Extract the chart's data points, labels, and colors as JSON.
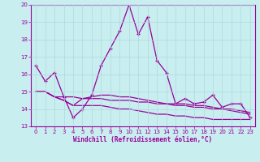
{
  "xlabel": "Windchill (Refroidissement éolien,°C)",
  "bg_color": "#c8eef0",
  "grid_color": "#b0d8dc",
  "line_color": "#990099",
  "xlim": [
    -0.5,
    23.5
  ],
  "ylim": [
    13,
    20
  ],
  "xticks": [
    0,
    1,
    2,
    3,
    4,
    5,
    6,
    7,
    8,
    9,
    10,
    11,
    12,
    13,
    14,
    15,
    16,
    17,
    18,
    19,
    20,
    21,
    22,
    23
  ],
  "yticks": [
    13,
    14,
    15,
    16,
    17,
    18,
    19,
    20
  ],
  "line1_x": [
    0,
    1,
    2,
    3,
    4,
    5,
    6,
    7,
    8,
    9,
    10,
    11,
    12,
    13,
    14,
    15,
    16,
    17,
    18,
    19,
    20,
    21,
    22,
    23
  ],
  "line1_y": [
    16.5,
    15.6,
    16.1,
    14.7,
    13.5,
    14.0,
    14.8,
    16.5,
    17.5,
    18.5,
    20.0,
    18.3,
    19.3,
    16.8,
    16.1,
    14.3,
    14.6,
    14.3,
    14.4,
    14.8,
    14.1,
    14.3,
    14.3,
    13.5
  ],
  "line2_x": [
    0,
    1,
    2,
    3,
    4,
    5,
    6,
    7,
    8,
    9,
    10,
    11,
    12,
    13,
    14,
    15,
    16,
    17,
    18,
    19,
    20,
    21,
    22,
    23
  ],
  "line2_y": [
    15.0,
    15.0,
    14.7,
    14.7,
    14.7,
    14.6,
    14.6,
    14.6,
    14.5,
    14.5,
    14.5,
    14.4,
    14.4,
    14.3,
    14.3,
    14.2,
    14.2,
    14.1,
    14.1,
    14.0,
    14.0,
    13.9,
    13.8,
    13.7
  ],
  "line3_x": [
    0,
    1,
    2,
    3,
    4,
    5,
    6,
    7,
    8,
    9,
    10,
    11,
    12,
    13,
    14,
    15,
    16,
    17,
    18,
    19,
    20,
    21,
    22,
    23
  ],
  "line3_y": [
    15.0,
    15.0,
    14.7,
    14.5,
    14.2,
    14.6,
    14.7,
    14.8,
    14.8,
    14.7,
    14.7,
    14.6,
    14.5,
    14.4,
    14.3,
    14.3,
    14.3,
    14.2,
    14.2,
    14.1,
    14.0,
    14.0,
    13.9,
    13.8
  ],
  "line4_x": [
    0,
    1,
    2,
    3,
    4,
    5,
    6,
    7,
    8,
    9,
    10,
    11,
    12,
    13,
    14,
    15,
    16,
    17,
    18,
    19,
    20,
    21,
    22,
    23
  ],
  "line4_y": [
    15.0,
    15.0,
    14.7,
    14.5,
    14.2,
    14.2,
    14.2,
    14.2,
    14.1,
    14.0,
    14.0,
    13.9,
    13.8,
    13.7,
    13.7,
    13.6,
    13.6,
    13.5,
    13.5,
    13.4,
    13.4,
    13.4,
    13.4,
    13.4
  ]
}
